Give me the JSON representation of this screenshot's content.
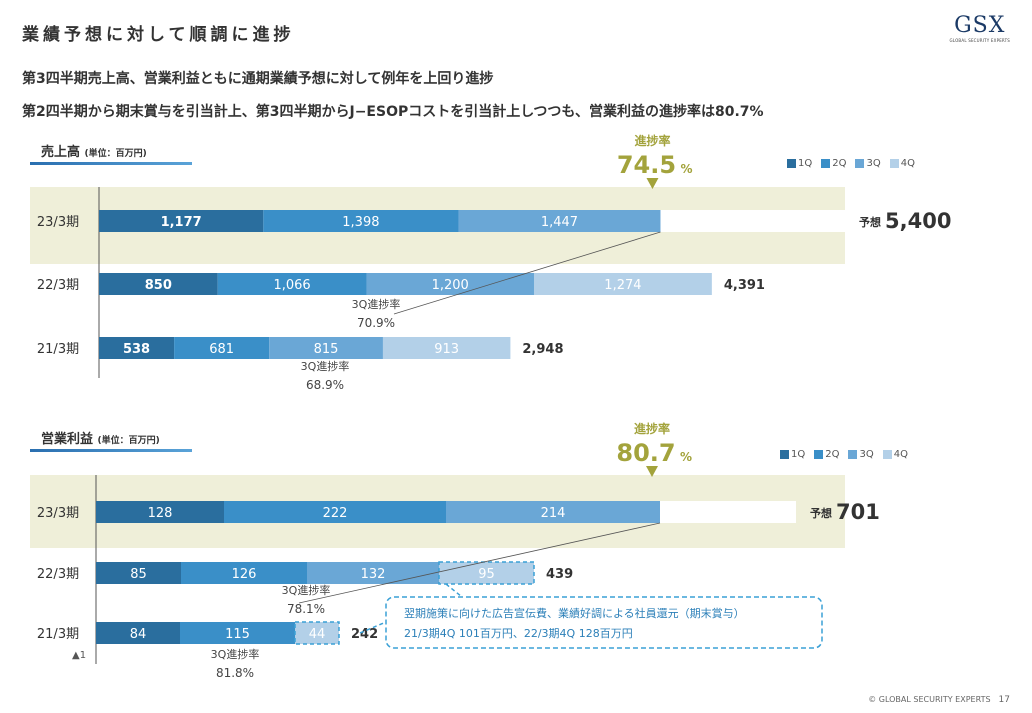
{
  "header": {
    "title": "業績予想に対して順調に進捗",
    "logo_text": "GSX",
    "logo_sub": "GLOBAL SECURITY EXPERTS"
  },
  "subtitles": [
    "第3四半期売上高、営業利益ともに通期業績予想に対して例年を上回り進捗",
    "第2四半期から期末賞与を引当計上、第3四半期からJ−ESOPコストを引当計上しつつも、営業利益の進捗率は80.7%"
  ],
  "footer": {
    "copyright": "© GLOBAL SECURITY EXPERTS",
    "page": "17"
  },
  "colors": {
    "q1": "#2a6e9e",
    "q2": "#3a8fc8",
    "q3": "#6aa7d6",
    "q4": "#b3d0e8",
    "highlight": "#efefd9",
    "marker": "#a3a33c",
    "dashed": "#3aa0d6"
  },
  "legend": [
    "1Q",
    "2Q",
    "3Q",
    "4Q"
  ],
  "chart_data": [
    {
      "type": "bar",
      "stacked": true,
      "orientation": "horizontal",
      "title": "売上高",
      "unit": "(単位：百万円)",
      "categories": [
        "23/3期",
        "22/3期",
        "21/3期"
      ],
      "series": [
        {
          "name": "1Q",
          "values": [
            1177,
            850,
            538
          ],
          "labels": [
            "1,177",
            "850",
            "538"
          ]
        },
        {
          "name": "2Q",
          "values": [
            1398,
            1066,
            681
          ],
          "labels": [
            "1,398",
            "1,066",
            "681"
          ]
        },
        {
          "name": "3Q",
          "values": [
            1447,
            1200,
            815
          ],
          "labels": [
            "1,447",
            "1,200",
            "815"
          ]
        },
        {
          "name": "4Q",
          "values": [
            null,
            1274,
            913
          ],
          "labels": [
            "",
            "1,274",
            "913"
          ]
        }
      ],
      "totals": [
        "",
        "4,391",
        "2,948"
      ],
      "forecast": {
        "prefix": "予想",
        "value": 5400,
        "label": "5,400"
      },
      "progress": {
        "label": "進捗率",
        "value": "74.5",
        "unit": "%"
      },
      "q3_progress": [
        {
          "label": "3Q進捗率",
          "value": "70.9%"
        },
        {
          "label": "3Q進捗率",
          "value": "68.9%"
        }
      ]
    },
    {
      "type": "bar",
      "stacked": true,
      "orientation": "horizontal",
      "title": "営業利益",
      "unit": "(単位：百万円)",
      "categories": [
        "23/3期",
        "22/3期",
        "21/3期"
      ],
      "series": [
        {
          "name": "1Q",
          "values": [
            128,
            85,
            84
          ],
          "labels": [
            "128",
            "85",
            "84"
          ]
        },
        {
          "name": "2Q",
          "values": [
            222,
            126,
            115
          ],
          "labels": [
            "222",
            "126",
            "115"
          ]
        },
        {
          "name": "3Q",
          "values": [
            214,
            132,
            null
          ],
          "labels": [
            "214",
            "132",
            ""
          ]
        },
        {
          "name": "4Q",
          "values": [
            null,
            95,
            44
          ],
          "labels": [
            "",
            "95",
            "44"
          ]
        }
      ],
      "negative_note": "▲1",
      "totals": [
        "",
        "439",
        "242"
      ],
      "forecast": {
        "prefix": "予想",
        "value": 701,
        "label": "701"
      },
      "progress": {
        "label": "進捗率",
        "value": "80.7",
        "unit": "%"
      },
      "q3_progress": [
        {
          "label": "3Q進捗率",
          "value": "78.1%"
        },
        {
          "label": "3Q進捗率",
          "value": "81.8%"
        }
      ],
      "callout": [
        "翌期施策に向けた広告宣伝費、業績好調による社員還元（期末賞与）",
        "21/3期4Q 101百万円、22/3期4Q 128百万円"
      ]
    }
  ]
}
